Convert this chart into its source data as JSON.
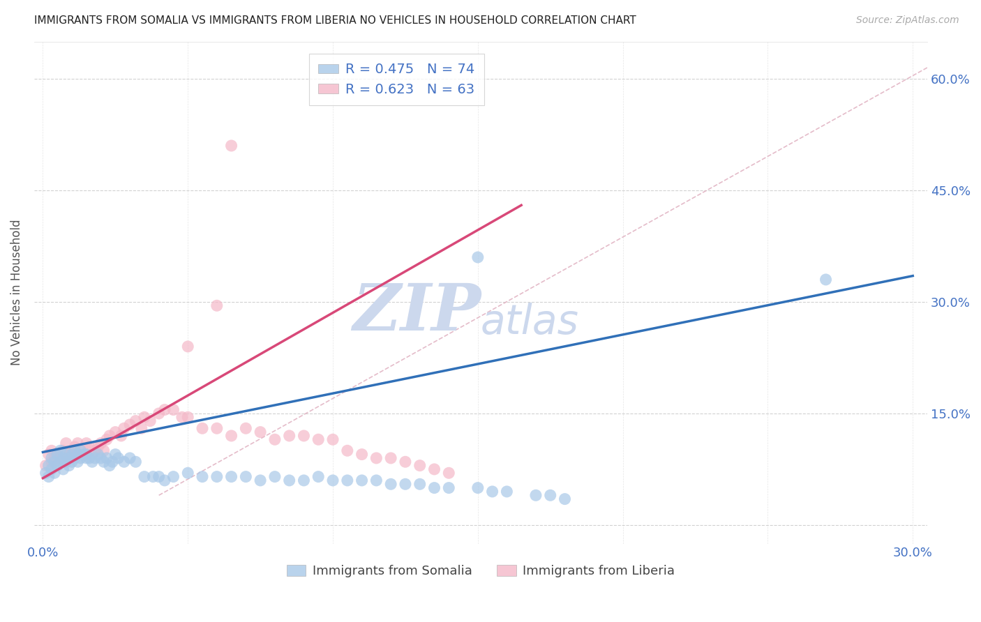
{
  "title": "IMMIGRANTS FROM SOMALIA VS IMMIGRANTS FROM LIBERIA NO VEHICLES IN HOUSEHOLD CORRELATION CHART",
  "source": "Source: ZipAtlas.com",
  "ylabel": "No Vehicles in Household",
  "xlim": [
    -0.003,
    0.305
  ],
  "ylim": [
    -0.025,
    0.65
  ],
  "yticks": [
    0.0,
    0.15,
    0.3,
    0.45,
    0.6
  ],
  "ytick_labels": [
    "",
    "15.0%",
    "30.0%",
    "45.0%",
    "60.0%"
  ],
  "xticks": [
    0.0,
    0.05,
    0.1,
    0.15,
    0.2,
    0.25,
    0.3
  ],
  "somalia_R": 0.475,
  "somalia_N": 74,
  "liberia_R": 0.623,
  "liberia_N": 63,
  "somalia_color": "#a8c8e8",
  "liberia_color": "#f4b8c8",
  "somalia_line_color": "#3070b8",
  "liberia_line_color": "#d84878",
  "diagonal_color": "#e0b0c0",
  "background_color": "#ffffff",
  "grid_color": "#cccccc",
  "title_color": "#222222",
  "axis_label_color": "#4472c4",
  "watermark_color": "#ccd8ed",
  "somalia_scatter_x": [
    0.001,
    0.002,
    0.002,
    0.003,
    0.003,
    0.004,
    0.004,
    0.005,
    0.005,
    0.006,
    0.006,
    0.007,
    0.007,
    0.008,
    0.008,
    0.009,
    0.009,
    0.01,
    0.01,
    0.011,
    0.011,
    0.012,
    0.012,
    0.013,
    0.013,
    0.014,
    0.015,
    0.015,
    0.016,
    0.017,
    0.018,
    0.019,
    0.02,
    0.021,
    0.022,
    0.023,
    0.024,
    0.025,
    0.026,
    0.028,
    0.03,
    0.032,
    0.035,
    0.038,
    0.04,
    0.042,
    0.045,
    0.05,
    0.055,
    0.06,
    0.065,
    0.07,
    0.075,
    0.08,
    0.085,
    0.09,
    0.095,
    0.1,
    0.105,
    0.11,
    0.115,
    0.12,
    0.125,
    0.13,
    0.135,
    0.14,
    0.15,
    0.155,
    0.16,
    0.17,
    0.175,
    0.18,
    0.27,
    0.15
  ],
  "somalia_scatter_y": [
    0.07,
    0.08,
    0.065,
    0.09,
    0.075,
    0.085,
    0.07,
    0.095,
    0.08,
    0.1,
    0.085,
    0.09,
    0.075,
    0.085,
    0.095,
    0.08,
    0.09,
    0.095,
    0.085,
    0.09,
    0.1,
    0.095,
    0.085,
    0.09,
    0.1,
    0.095,
    0.09,
    0.095,
    0.09,
    0.085,
    0.09,
    0.095,
    0.09,
    0.085,
    0.09,
    0.08,
    0.085,
    0.095,
    0.09,
    0.085,
    0.09,
    0.085,
    0.065,
    0.065,
    0.065,
    0.06,
    0.065,
    0.07,
    0.065,
    0.065,
    0.065,
    0.065,
    0.06,
    0.065,
    0.06,
    0.06,
    0.065,
    0.06,
    0.06,
    0.06,
    0.06,
    0.055,
    0.055,
    0.055,
    0.05,
    0.05,
    0.05,
    0.045,
    0.045,
    0.04,
    0.04,
    0.035,
    0.33,
    0.36
  ],
  "liberia_scatter_x": [
    0.001,
    0.002,
    0.003,
    0.003,
    0.004,
    0.005,
    0.005,
    0.006,
    0.007,
    0.008,
    0.008,
    0.009,
    0.01,
    0.01,
    0.011,
    0.012,
    0.012,
    0.013,
    0.014,
    0.015,
    0.015,
    0.016,
    0.017,
    0.018,
    0.019,
    0.02,
    0.021,
    0.022,
    0.023,
    0.025,
    0.027,
    0.028,
    0.03,
    0.032,
    0.034,
    0.035,
    0.037,
    0.04,
    0.042,
    0.045,
    0.048,
    0.05,
    0.055,
    0.06,
    0.065,
    0.07,
    0.075,
    0.08,
    0.085,
    0.09,
    0.095,
    0.1,
    0.105,
    0.11,
    0.115,
    0.12,
    0.125,
    0.13,
    0.135,
    0.14,
    0.05,
    0.06,
    0.065
  ],
  "liberia_scatter_y": [
    0.08,
    0.095,
    0.085,
    0.1,
    0.09,
    0.095,
    0.08,
    0.09,
    0.1,
    0.09,
    0.11,
    0.095,
    0.1,
    0.095,
    0.105,
    0.095,
    0.11,
    0.1,
    0.095,
    0.11,
    0.095,
    0.105,
    0.095,
    0.1,
    0.105,
    0.11,
    0.1,
    0.115,
    0.12,
    0.125,
    0.12,
    0.13,
    0.135,
    0.14,
    0.13,
    0.145,
    0.14,
    0.15,
    0.155,
    0.155,
    0.145,
    0.145,
    0.13,
    0.13,
    0.12,
    0.13,
    0.125,
    0.115,
    0.12,
    0.12,
    0.115,
    0.115,
    0.1,
    0.095,
    0.09,
    0.09,
    0.085,
    0.08,
    0.075,
    0.07,
    0.24,
    0.295,
    0.51
  ],
  "somalia_line_x": [
    0.0,
    0.3
  ],
  "somalia_line_y": [
    0.098,
    0.335
  ],
  "liberia_line_x": [
    0.0,
    0.165
  ],
  "liberia_line_y": [
    0.063,
    0.43
  ],
  "diagonal_line_x": [
    0.04,
    0.305
  ],
  "diagonal_line_y": [
    0.04,
    0.615
  ],
  "figsize": [
    14.06,
    8.92
  ],
  "dpi": 100
}
